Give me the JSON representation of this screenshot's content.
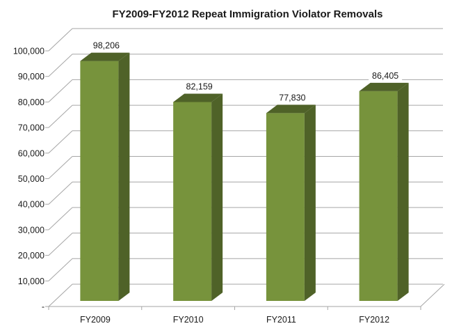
{
  "chart_data": {
    "type": "bar",
    "title": "FY2009-FY2012  Repeat Immigration Violator Removals",
    "xlabel": "",
    "ylabel": "",
    "categories": [
      "FY2009",
      "FY2010",
      "FY2011",
      "FY2012"
    ],
    "values": [
      98206,
      82159,
      77830,
      86405
    ],
    "data_labels": [
      "98,206",
      "82,159",
      "77,830",
      "86,405"
    ],
    "ylim": [
      0,
      100000
    ],
    "yticks": [
      0,
      10000,
      20000,
      30000,
      40000,
      50000,
      60000,
      70000,
      80000,
      90000,
      100000
    ],
    "ytick_labels": [
      "-",
      "10,000",
      "20,000",
      "30,000",
      "40,000",
      "50,000",
      "60,000",
      "70,000",
      "80,000",
      "90,000",
      "100,000"
    ],
    "grid": true,
    "legend": "none",
    "style": "3d-column",
    "colors": {
      "bar_front": "#77933c",
      "bar_top": "#4f6228",
      "bar_side": "#4f6228",
      "gridline": "#a6a6a6",
      "label_box": "#ffffff"
    }
  }
}
